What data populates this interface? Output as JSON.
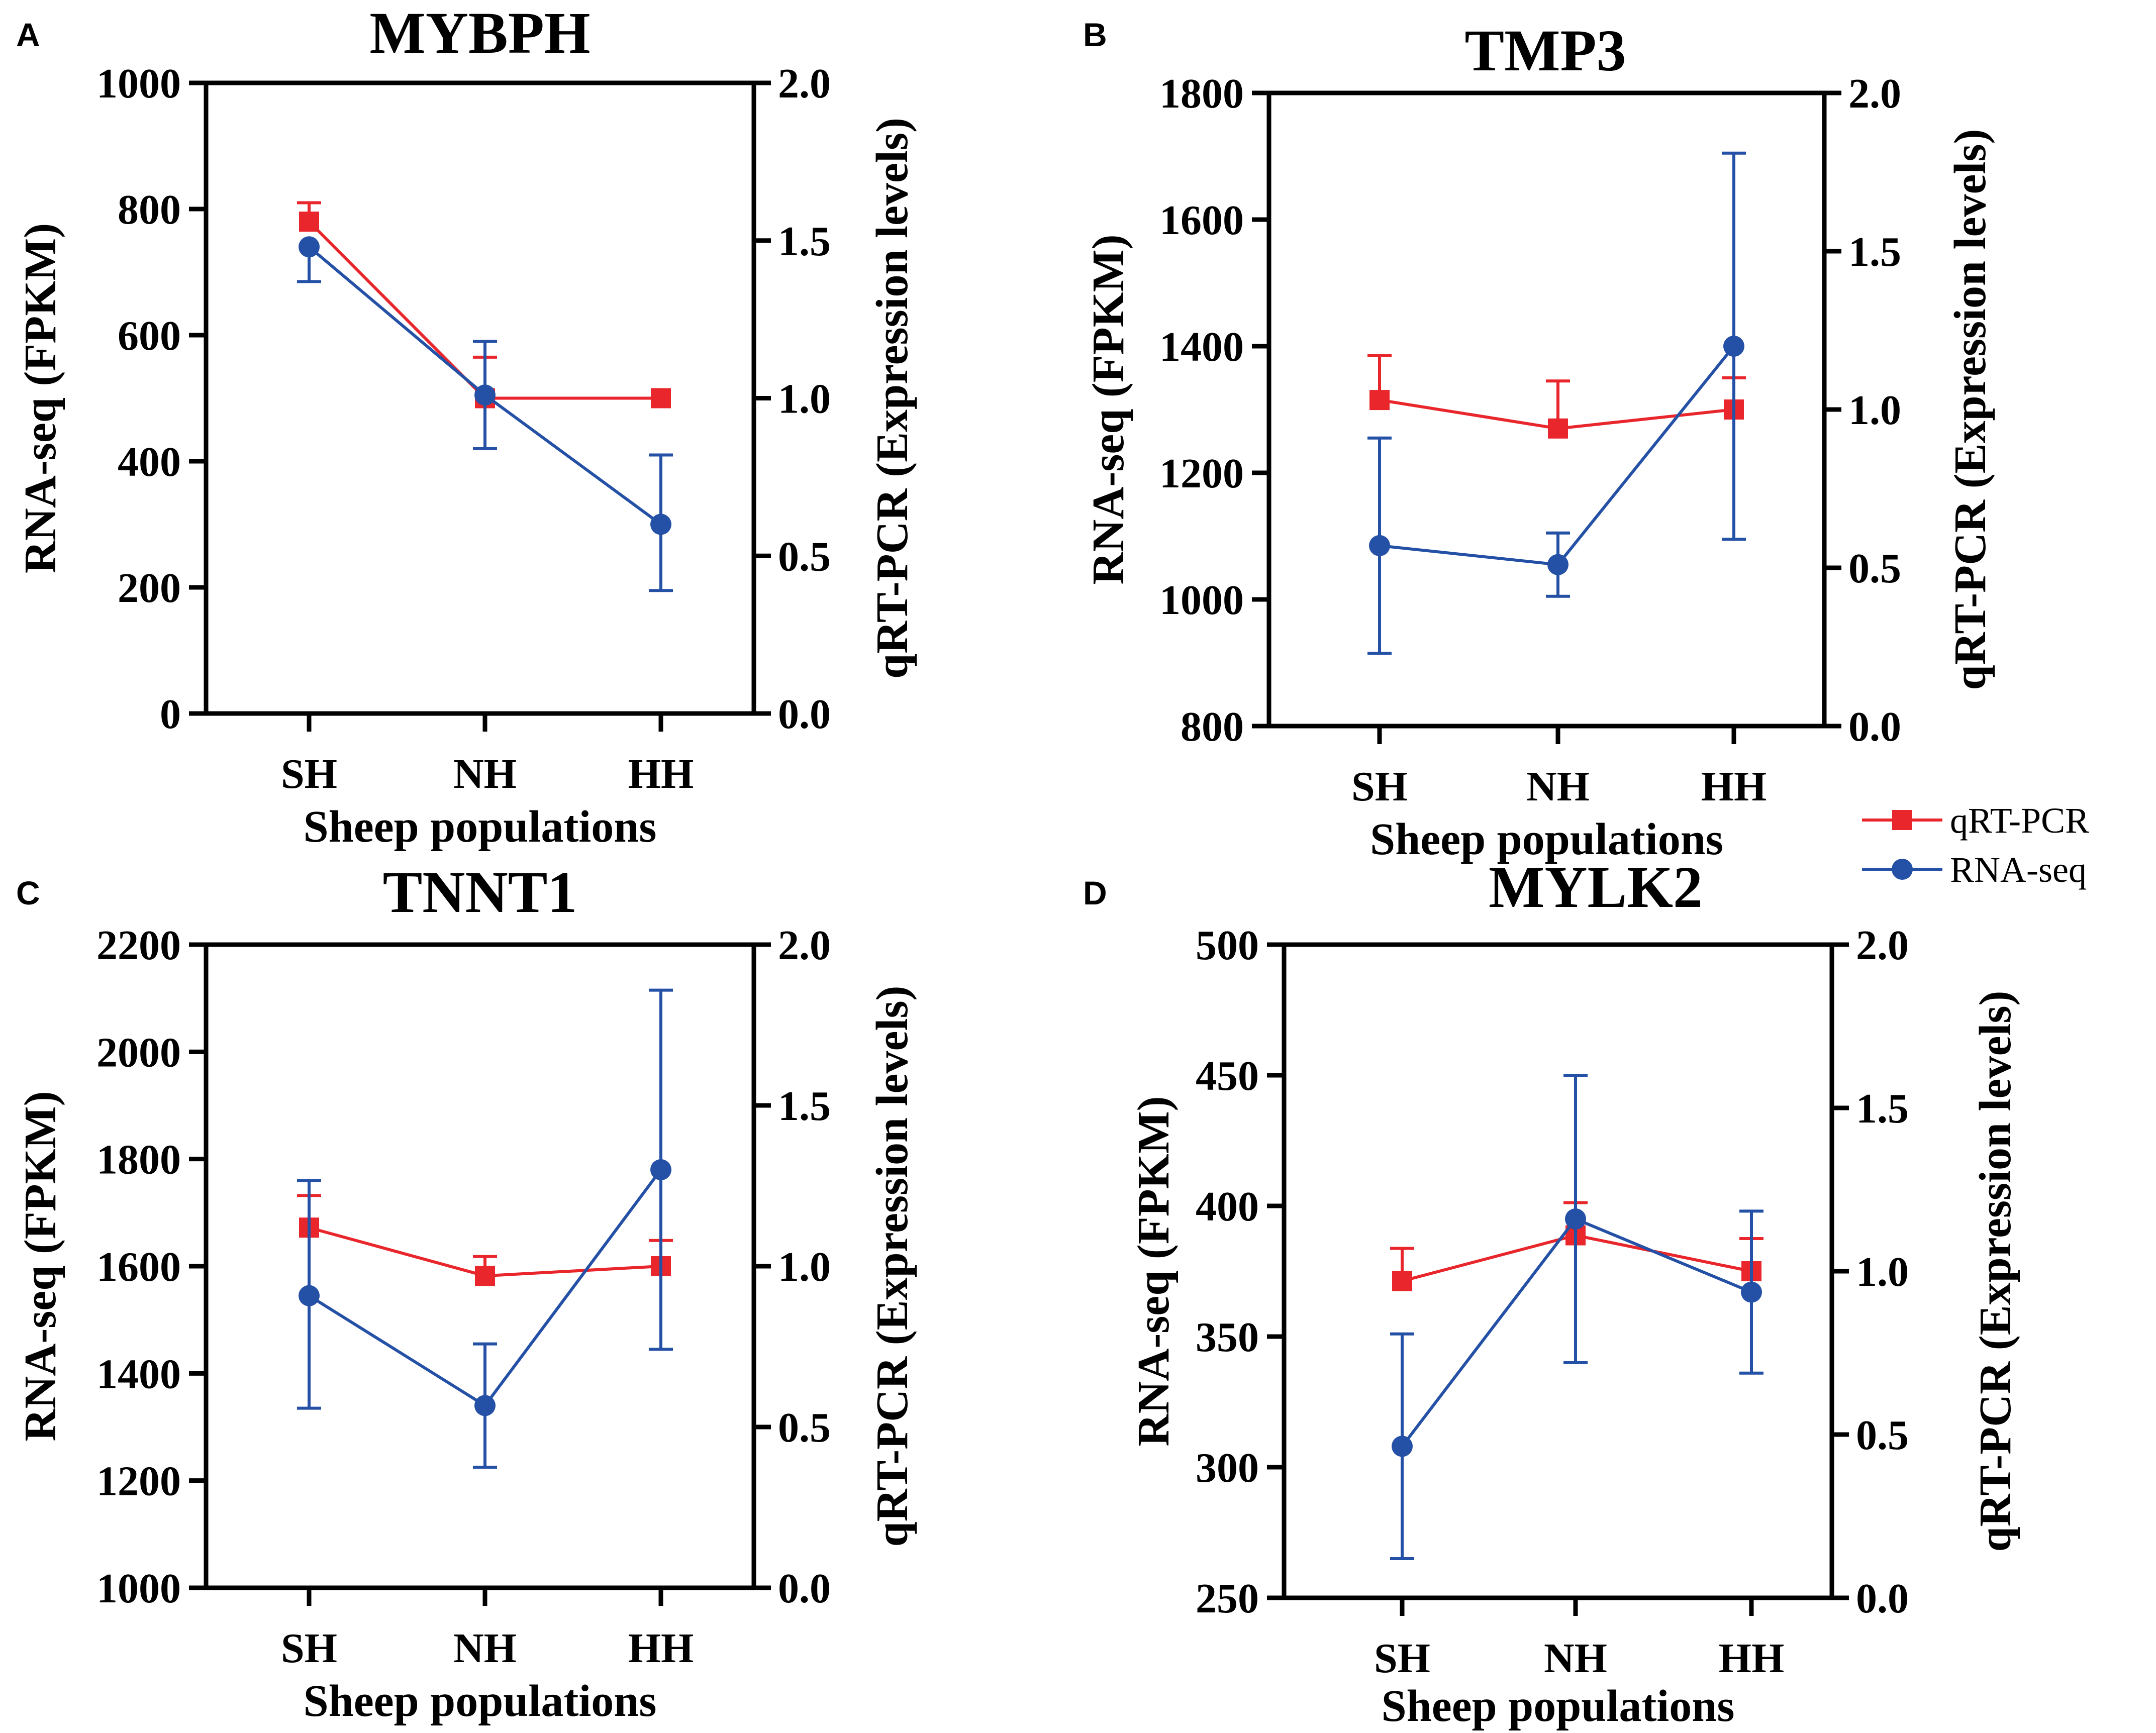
{
  "colors": {
    "qrtpcr": "#e8262b",
    "rnaseq": "#2450a6",
    "axis": "#000000"
  },
  "legend": {
    "items": [
      {
        "label": "qRT-PCR",
        "color": "#e8262b",
        "marker": "square"
      },
      {
        "label": "RNA-seq",
        "color": "#2450a6",
        "marker": "circle"
      }
    ]
  },
  "chart_data": [
    {
      "panel": "A",
      "type": "line",
      "title": "MYBPH",
      "categories": [
        "SH",
        "NH",
        "HH"
      ],
      "xlabel": "Sheep populations",
      "ylabel_left": "RNA-seq (FPKM)",
      "ylabel_right": "qRT-PCR (Expression levels)",
      "ylim_left": [
        0,
        1000
      ],
      "yticks_left": [
        0,
        200,
        400,
        600,
        800,
        1000
      ],
      "yticks_left_labels": [
        "0",
        "200",
        "400",
        "600",
        "800",
        "1000"
      ],
      "ylim_right": [
        0,
        2
      ],
      "yticks_right": [
        0,
        0.5,
        1,
        1.5,
        2
      ],
      "yticks_right_labels": [
        "0.0",
        "0.5",
        "1.0",
        "1.5",
        "2.0"
      ],
      "series": [
        {
          "name": "qRT-PCR",
          "axis": "right",
          "marker": "square",
          "values": [
            1.56,
            1.0,
            1.0
          ],
          "err_up": [
            0.06,
            0.13,
            0
          ],
          "err_down": [
            0,
            0,
            0
          ]
        },
        {
          "name": "RNA-seq",
          "axis": "left",
          "marker": "circle",
          "values": [
            740,
            505,
            300
          ],
          "err_up": [
            0,
            85,
            110
          ],
          "err_down": [
            55,
            85,
            105
          ]
        }
      ]
    },
    {
      "panel": "B",
      "type": "line",
      "title": "TMP3",
      "categories": [
        "SH",
        "NH",
        "HH"
      ],
      "xlabel": "Sheep populations",
      "ylabel_left": "RNA-seq (FPKM)",
      "ylabel_right": "qRT-PCR (Expression levels)",
      "ylim_left": [
        800,
        1800
      ],
      "yticks_left": [
        800,
        1000,
        1200,
        1400,
        1600,
        1800
      ],
      "yticks_left_labels": [
        "800",
        "1000",
        "1200",
        "1400",
        "1600",
        "1800"
      ],
      "ylim_right": [
        0,
        2
      ],
      "yticks_right": [
        0,
        0.5,
        1,
        1.5,
        2
      ],
      "yticks_right_labels": [
        "0.0",
        "0.5",
        "1.0",
        "1.5",
        "2.0"
      ],
      "series": [
        {
          "name": "qRT-PCR",
          "axis": "right",
          "marker": "square",
          "values": [
            1.03,
            0.94,
            1.0
          ],
          "err_up": [
            0.14,
            0.15,
            0.1
          ],
          "err_down": [
            0,
            0,
            0
          ]
        },
        {
          "name": "RNA-seq",
          "axis": "left",
          "marker": "circle",
          "values": [
            1085,
            1055,
            1400
          ],
          "err_up": [
            170,
            50,
            305
          ],
          "err_down": [
            170,
            50,
            305
          ]
        }
      ]
    },
    {
      "panel": "C",
      "type": "line",
      "title": "TNNT1",
      "categories": [
        "SH",
        "NH",
        "HH"
      ],
      "xlabel": "Sheep populations",
      "ylabel_left": "RNA-seq (FPKM)",
      "ylabel_right": "qRT-PCR (Expression levels)",
      "ylim_left": [
        1000,
        2200
      ],
      "yticks_left": [
        1000,
        1200,
        1400,
        1600,
        1800,
        2000,
        2200
      ],
      "yticks_left_labels": [
        "1000",
        "1200",
        "1400",
        "1600",
        "1800",
        "2000",
        "2200"
      ],
      "ylim_right": [
        0,
        2
      ],
      "yticks_right": [
        0,
        0.5,
        1,
        1.5,
        2
      ],
      "yticks_right_labels": [
        "0.0",
        "0.5",
        "1.0",
        "1.5",
        "2.0"
      ],
      "series": [
        {
          "name": "qRT-PCR",
          "axis": "right",
          "marker": "square",
          "values": [
            1.12,
            0.97,
            1.0
          ],
          "err_up": [
            0.1,
            0.06,
            0.08
          ],
          "err_down": [
            0,
            0,
            0
          ]
        },
        {
          "name": "RNA-seq",
          "axis": "left",
          "marker": "circle",
          "values": [
            1545,
            1340,
            1780
          ],
          "err_up": [
            215,
            115,
            335
          ],
          "err_down": [
            210,
            115,
            335
          ]
        }
      ]
    },
    {
      "panel": "D",
      "type": "line",
      "title": "MYLK2",
      "categories": [
        "SH",
        "NH",
        "HH"
      ],
      "xlabel": "Sheep populations",
      "ylabel_left": "RNA-seq (FPKM)",
      "ylabel_right": "qRT-PCR (Expression levels)",
      "ylim_left": [
        250,
        500
      ],
      "yticks_left": [
        250,
        300,
        350,
        400,
        450,
        500
      ],
      "yticks_left_labels": [
        "250",
        "300",
        "350",
        "400",
        "450",
        "500"
      ],
      "ylim_right": [
        0,
        2
      ],
      "yticks_right": [
        0,
        0.5,
        1,
        1.5,
        2
      ],
      "yticks_right_labels": [
        "0.0",
        "0.5",
        "1.0",
        "1.5",
        "2.0"
      ],
      "series": [
        {
          "name": "qRT-PCR",
          "axis": "right",
          "marker": "square",
          "values": [
            0.97,
            1.11,
            1.0
          ],
          "err_up": [
            0.1,
            0.1,
            0.1
          ],
          "err_down": [
            0,
            0,
            0
          ]
        },
        {
          "name": "RNA-seq",
          "axis": "left",
          "marker": "circle",
          "values": [
            308,
            395,
            367
          ],
          "err_up": [
            43,
            55,
            31
          ],
          "err_down": [
            43,
            55,
            31
          ]
        }
      ]
    }
  ]
}
